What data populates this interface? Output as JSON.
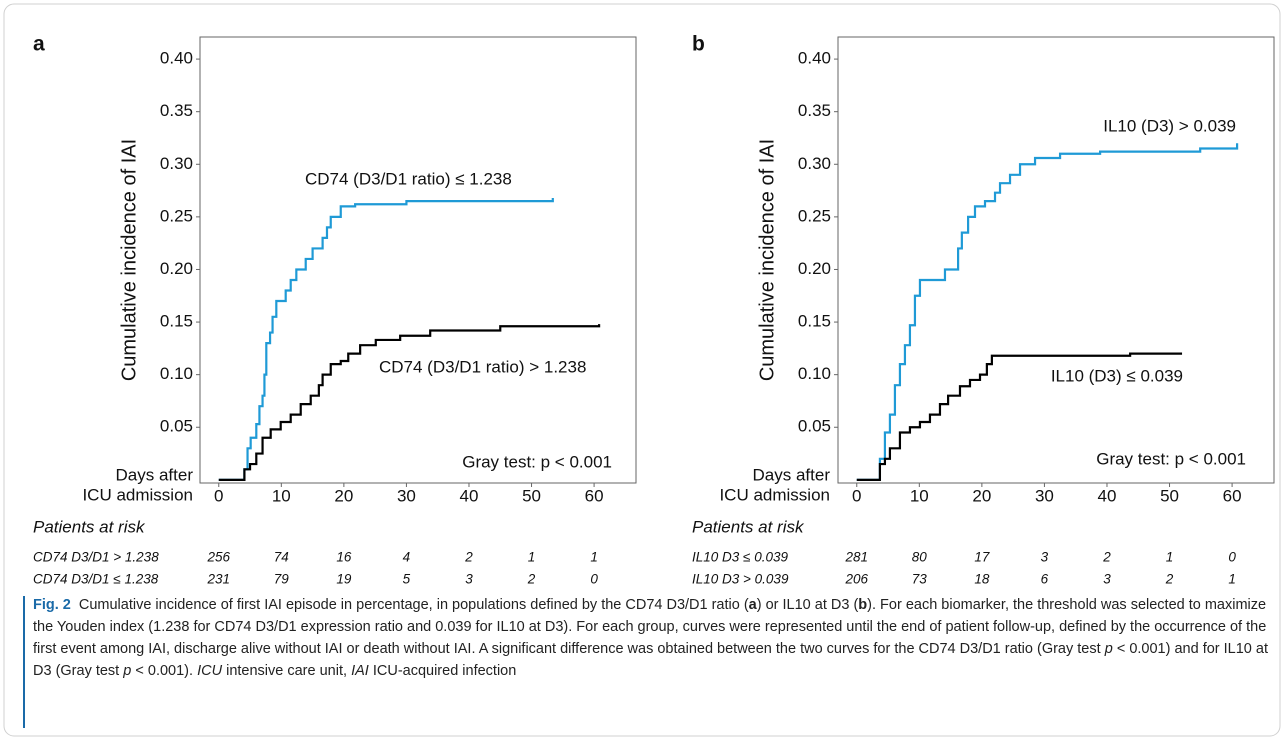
{
  "chart_data": [
    {
      "type": "line",
      "drawstyle": "steps-post",
      "panel_label": "a",
      "ylabel": "Cumulative incidence of IAI",
      "xlabel_lines": [
        "Days after",
        "ICU admission"
      ],
      "xlim": [
        -3,
        66.7
      ],
      "ylim": [
        -0.003,
        0.421
      ],
      "xticks": [
        0,
        10,
        20,
        30,
        40,
        50,
        60
      ],
      "yticks": [
        {
          "value": 0.05,
          "label": "0.05"
        },
        {
          "value": 0.1,
          "label": "0.10"
        },
        {
          "value": 0.15,
          "label": "0.15"
        },
        {
          "value": 0.2,
          "label": "0.20"
        },
        {
          "value": 0.25,
          "label": "0.25"
        },
        {
          "value": 0.3,
          "label": "0.30"
        },
        {
          "value": 0.35,
          "label": "0.35"
        },
        {
          "value": 0.4,
          "label": "0.40"
        }
      ],
      "series": [
        {
          "name": "CD74 (D3/D1 ratio) ≤ 1.238",
          "color": "#1f9ad6",
          "x": [
            0,
            4.1,
            4.6,
            5.1,
            6,
            6.5,
            7,
            7.3,
            7.6,
            8.2,
            8.6,
            9.2,
            10.7,
            11.5,
            12.4,
            13.9,
            15,
            16.6,
            17.3,
            17.9,
            19.5,
            21.8,
            30,
            53.4
          ],
          "values": [
            0,
            0.01,
            0.03,
            0.04,
            0.053,
            0.07,
            0.08,
            0.1,
            0.13,
            0.14,
            0.155,
            0.17,
            0.18,
            0.19,
            0.2,
            0.21,
            0.22,
            0.23,
            0.24,
            0.25,
            0.26,
            0.262,
            0.265,
            0.268
          ]
        },
        {
          "name": "CD74 (D3/D1 ratio) > 1.238",
          "color": "#000000",
          "x": [
            0,
            4.1,
            5,
            6,
            7,
            8.3,
            9.9,
            11.5,
            13.1,
            14.7,
            16,
            16.6,
            17.9,
            19.5,
            20.7,
            22.6,
            25.1,
            29,
            33.8,
            45,
            60.8
          ],
          "values": [
            0,
            0.01,
            0.015,
            0.025,
            0.04,
            0.048,
            0.055,
            0.062,
            0.072,
            0.08,
            0.09,
            0.1,
            0.11,
            0.113,
            0.12,
            0.128,
            0.133,
            0.137,
            0.142,
            0.146,
            0.148
          ]
        }
      ],
      "annotations": [
        "Gray test: p < 0.001"
      ],
      "risk_table": {
        "title": "Patients at risk",
        "rows": [
          {
            "label": "CD74 D3/D1 > 1.238",
            "values": [
              256,
              74,
              16,
              4,
              2,
              1,
              1
            ]
          },
          {
            "label": "CD74 D3/D1 ≤ 1.238",
            "values": [
              231,
              79,
              19,
              5,
              3,
              2,
              0
            ]
          }
        ]
      }
    },
    {
      "type": "line",
      "drawstyle": "steps-post",
      "panel_label": "b",
      "ylabel": "Cumulative incidence of IAI",
      "xlabel_lines": [
        "Days after",
        "ICU admission"
      ],
      "xlim": [
        -3,
        66.7
      ],
      "ylim": [
        -0.003,
        0.421
      ],
      "xticks": [
        0,
        10,
        20,
        30,
        40,
        50,
        60
      ],
      "yticks": [
        {
          "value": 0.05,
          "label": "0.05"
        },
        {
          "value": 0.1,
          "label": "0.10"
        },
        {
          "value": 0.15,
          "label": "0.15"
        },
        {
          "value": 0.2,
          "label": "0.20"
        },
        {
          "value": 0.25,
          "label": "0.25"
        },
        {
          "value": 0.3,
          "label": "0.30"
        },
        {
          "value": 0.35,
          "label": "0.35"
        },
        {
          "value": 0.4,
          "label": "0.40"
        }
      ],
      "series": [
        {
          "name": "IL10 (D3) > 0.039",
          "color": "#1f9ad6",
          "x": [
            0,
            3.7,
            4.5,
            5.3,
            6.1,
            6.9,
            7.7,
            8.5,
            9.3,
            10.1,
            14.1,
            16.2,
            16.8,
            17.8,
            18.9,
            20.5,
            22.1,
            22.9,
            24.5,
            26.1,
            28.5,
            32.5,
            38.9,
            54.9,
            60.8
          ],
          "values": [
            0,
            0.02,
            0.045,
            0.062,
            0.09,
            0.11,
            0.128,
            0.147,
            0.175,
            0.19,
            0.2,
            0.22,
            0.235,
            0.25,
            0.26,
            0.265,
            0.273,
            0.282,
            0.29,
            0.3,
            0.306,
            0.31,
            0.312,
            0.315,
            0.32
          ]
        },
        {
          "name": "IL10 (D3) ≤ 0.039",
          "color": "#000000",
          "x": [
            0,
            3.7,
            4.5,
            5.3,
            6.9,
            8.5,
            10.1,
            11.7,
            13.3,
            14.6,
            16.5,
            18.1,
            19.7,
            20.8,
            21.6,
            43.7,
            52
          ],
          "values": [
            0,
            0.015,
            0.02,
            0.03,
            0.045,
            0.05,
            0.055,
            0.062,
            0.072,
            0.08,
            0.089,
            0.095,
            0.1,
            0.11,
            0.118,
            0.12,
            0.12
          ]
        }
      ],
      "annotations": [
        "Gray test: p < 0.001"
      ],
      "risk_table": {
        "title": "Patients at risk",
        "rows": [
          {
            "label": "IL10 D3 ≤ 0.039",
            "values": [
              281,
              80,
              17,
              3,
              2,
              1,
              0
            ]
          },
          {
            "label": "IL10 D3 > 0.039",
            "values": [
              206,
              73,
              18,
              6,
              3,
              2,
              1
            ]
          }
        ]
      }
    }
  ],
  "caption": {
    "label": "Fig. 2",
    "runs": [
      {
        "text": "Cumulative incidence of first IAI episode in percentage, in populations defined by the CD74 D3/D1 ratio (",
        "style": "normal"
      },
      {
        "text": "a",
        "style": "bold"
      },
      {
        "text": ") or IL10 at D3 (",
        "style": "normal"
      },
      {
        "text": "b",
        "style": "bold"
      },
      {
        "text": "). For each biomarker, the threshold was selected to maximize the Youden index (1.238 for CD74 D3/D1 expression ratio and 0.039 for IL10 at D3). For each group, curves were represented until the end of patient follow-up, defined by the occurrence of the first event among IAI, discharge alive without IAI or death without IAI. A significant difference was obtained between the two curves for the CD74 D3/D1 ratio (Gray test",
        "style": "normal"
      },
      {
        "text": "p",
        "style": "italic"
      },
      {
        "text": "< 0.001) and for IL10 at D3 (Gray test",
        "style": "normal"
      },
      {
        "text": "p",
        "style": "italic"
      },
      {
        "text": "< 0.001).",
        "style": "normal"
      },
      {
        "text": "ICU",
        "style": "italic"
      },
      {
        "text": "intensive care unit,",
        "style": "normal"
      },
      {
        "text": "IAI",
        "style": "italic"
      },
      {
        "text": "ICU-acquired infection",
        "style": "normal"
      }
    ]
  }
}
